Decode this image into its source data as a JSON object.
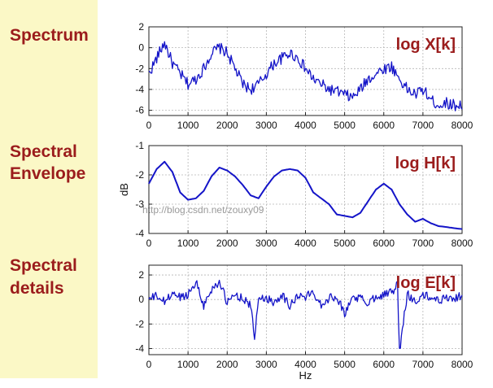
{
  "panel_labels": {
    "spectrum": "Spectrum",
    "envelope_line1": "Spectral",
    "envelope_line2": "Envelope",
    "details_line1": "Spectral",
    "details_line2": "details"
  },
  "watermark": "http://blog.csdn.net/zouxy09",
  "colors": {
    "line": "#1414c8",
    "label": "#9b1c1c",
    "panel_bg": "#fbf8c6",
    "grid": "#b5b5b5"
  },
  "chart_data": [
    {
      "type": "line",
      "label": "log X[k]",
      "xlabel": "",
      "ylabel": "",
      "xlim": [
        0,
        8000
      ],
      "ylim": [
        -6.5,
        2
      ],
      "xticks": [
        0,
        1000,
        2000,
        3000,
        4000,
        5000,
        6000,
        7000,
        8000
      ],
      "yticks": [
        2,
        0,
        -2,
        -4,
        -6
      ],
      "grid": true,
      "x": [
        0,
        200,
        400,
        600,
        800,
        1000,
        1200,
        1400,
        1600,
        1800,
        2000,
        2200,
        2400,
        2600,
        2800,
        3000,
        3200,
        3400,
        3600,
        3800,
        4000,
        4200,
        4400,
        4600,
        4800,
        5000,
        5200,
        5400,
        5600,
        5800,
        6000,
        6200,
        6400,
        6600,
        6800,
        7000,
        7200,
        7400,
        7600,
        7800,
        8000
      ],
      "values": [
        -2.5,
        -1.0,
        0.5,
        -1.5,
        -2.5,
        -3.5,
        -3.0,
        -2.0,
        -0.5,
        0.0,
        -0.5,
        -2.0,
        -3.5,
        -4.0,
        -3.5,
        -2.5,
        -1.5,
        -1.0,
        -0.5,
        -1.0,
        -2.0,
        -3.0,
        -3.5,
        -4.0,
        -4.2,
        -4.5,
        -4.8,
        -4.0,
        -3.0,
        -2.5,
        -2.0,
        -1.8,
        -3.0,
        -4.0,
        -4.5,
        -4.0,
        -5.0,
        -5.5,
        -5.3,
        -5.5,
        -5.5
      ],
      "noise": 0.55
    },
    {
      "type": "line",
      "label": "log H[k]",
      "xlabel": "",
      "ylabel": "dB",
      "xlim": [
        0,
        8000
      ],
      "ylim": [
        -4,
        -1
      ],
      "xticks": [
        0,
        1000,
        2000,
        3000,
        4000,
        5000,
        6000,
        7000,
        8000
      ],
      "yticks": [
        -1,
        -2,
        -3,
        -4
      ],
      "grid": true,
      "x": [
        0,
        200,
        400,
        600,
        800,
        1000,
        1200,
        1400,
        1600,
        1800,
        2000,
        2200,
        2400,
        2600,
        2800,
        3000,
        3200,
        3400,
        3600,
        3800,
        4000,
        4200,
        4400,
        4600,
        4800,
        5000,
        5200,
        5400,
        5600,
        5800,
        6000,
        6200,
        6400,
        6600,
        6800,
        7000,
        7200,
        7400,
        7600,
        7800,
        8000
      ],
      "values": [
        -2.3,
        -1.8,
        -1.55,
        -1.9,
        -2.6,
        -2.85,
        -2.8,
        -2.55,
        -2.05,
        -1.75,
        -1.85,
        -2.05,
        -2.35,
        -2.7,
        -2.8,
        -2.4,
        -2.05,
        -1.85,
        -1.8,
        -1.85,
        -2.1,
        -2.6,
        -2.8,
        -3.0,
        -3.35,
        -3.4,
        -3.45,
        -3.3,
        -2.9,
        -2.5,
        -2.3,
        -2.5,
        -3.0,
        -3.35,
        -3.6,
        -3.5,
        -3.65,
        -3.75,
        -3.78,
        -3.82,
        -3.85
      ],
      "noise": 0
    },
    {
      "type": "line",
      "label": "log E[k]",
      "xlabel": "Hz",
      "ylabel": "",
      "xlim": [
        0,
        8000
      ],
      "ylim": [
        -4.5,
        2.8
      ],
      "xticks": [
        0,
        1000,
        2000,
        3000,
        4000,
        5000,
        6000,
        7000,
        8000
      ],
      "yticks": [
        2,
        0,
        -2,
        -4
      ],
      "grid": true,
      "x": [
        0,
        200,
        400,
        600,
        800,
        1000,
        1200,
        1400,
        1600,
        1800,
        2000,
        2200,
        2400,
        2600,
        2700,
        2800,
        3000,
        3200,
        3400,
        3600,
        3800,
        4000,
        4200,
        4400,
        4600,
        4800,
        5000,
        5200,
        5400,
        5600,
        5800,
        6000,
        6200,
        6350,
        6400,
        6600,
        6800,
        7000,
        7200,
        7400,
        7600,
        7800,
        8000
      ],
      "values": [
        0,
        0.3,
        -0.2,
        0.5,
        0.2,
        0.4,
        1.5,
        -0.5,
        0.8,
        1.5,
        -0.3,
        0.4,
        0.1,
        -0.5,
        -3.2,
        0.2,
        0.1,
        -0.2,
        0.4,
        -0.5,
        0.3,
        0.2,
        0.6,
        -0.4,
        0.1,
        0.3,
        -1.2,
        0.2,
        0.1,
        -0.3,
        0.3,
        0.4,
        0.6,
        1.2,
        -4.3,
        0.5,
        -0.2,
        0.3,
        0.2,
        -0.1,
        0.2,
        0.1,
        0.3
      ],
      "noise": 0.35
    }
  ]
}
